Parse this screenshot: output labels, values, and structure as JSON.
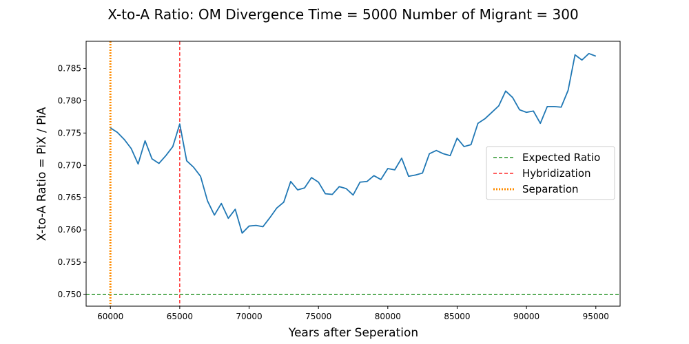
{
  "chart_data": {
    "type": "line",
    "title": "X-to-A Ratio: OM Divergence Time = 5000  Number of Migrant = 300",
    "xlabel": "Years after Seperation",
    "ylabel": "X-to-A Ratio = PiX / PiA",
    "xlim": [
      58250,
      96750
    ],
    "ylim": [
      0.7482,
      0.7892
    ],
    "xticks": [
      60000,
      65000,
      70000,
      75000,
      80000,
      85000,
      90000,
      95000
    ],
    "yticks": [
      0.75,
      0.755,
      0.76,
      0.765,
      0.77,
      0.775,
      0.78,
      0.785
    ],
    "xtick_labels": [
      "60000",
      "65000",
      "70000",
      "75000",
      "80000",
      "85000",
      "90000",
      "95000"
    ],
    "ytick_labels": [
      "0.750",
      "0.755",
      "0.760",
      "0.765",
      "0.770",
      "0.775",
      "0.780",
      "0.785"
    ],
    "grid": false,
    "legend_position": "center-right",
    "series": [
      {
        "color": "#1f77b4",
        "x": [
          60000,
          60500,
          61000,
          61500,
          62000,
          62500,
          63000,
          63500,
          64000,
          64500,
          65000,
          65500,
          66000,
          66500,
          67000,
          67500,
          68000,
          68500,
          69000,
          69500,
          70000,
          70500,
          71000,
          71500,
          72000,
          72500,
          73000,
          73500,
          74000,
          74500,
          75000,
          75500,
          76000,
          76500,
          77000,
          77500,
          78000,
          78500,
          79000,
          79500,
          80000,
          80500,
          81000,
          81500,
          82000,
          82500,
          83000,
          83500,
          84000,
          84500,
          85000,
          85500,
          86000,
          86500,
          87000,
          87500,
          88000,
          88500,
          89000,
          89500,
          90000,
          90500,
          91000,
          91500,
          92000,
          92500,
          93000,
          93500,
          94000,
          94500,
          95000
        ],
        "values": [
          0.7758,
          0.7751,
          0.774,
          0.7726,
          0.7702,
          0.7738,
          0.771,
          0.7703,
          0.7715,
          0.7729,
          0.7764,
          0.7707,
          0.7697,
          0.7683,
          0.7645,
          0.7623,
          0.7641,
          0.7618,
          0.7632,
          0.7595,
          0.7606,
          0.7607,
          0.7605,
          0.7619,
          0.7634,
          0.7643,
          0.7675,
          0.7662,
          0.7665,
          0.7681,
          0.7674,
          0.7656,
          0.7655,
          0.7667,
          0.7664,
          0.7654,
          0.7674,
          0.7675,
          0.7684,
          0.7678,
          0.7695,
          0.7693,
          0.7711,
          0.7683,
          0.7685,
          0.7688,
          0.7718,
          0.7723,
          0.7718,
          0.7715,
          0.7742,
          0.7729,
          0.7732,
          0.7765,
          0.7772,
          0.7782,
          0.7792,
          0.7815,
          0.7805,
          0.7786,
          0.7782,
          0.7784,
          0.7765,
          0.7791,
          0.7791,
          0.779,
          0.7816,
          0.7871,
          0.7863,
          0.7873,
          0.7869
        ]
      }
    ],
    "reference_lines": [
      {
        "orientation": "horizontal",
        "value": 0.75,
        "color": "#008000",
        "style": "dashed",
        "label": "Expected Ratio"
      },
      {
        "orientation": "vertical",
        "value": 65000,
        "color": "#ff0000",
        "style": "dashed",
        "label": "Hybridization"
      },
      {
        "orientation": "vertical",
        "value": 60000,
        "color": "#ff8c00",
        "style": "dotted",
        "label": "Separation"
      }
    ],
    "legend": [
      "Expected Ratio",
      "Hybridization",
      "Separation"
    ]
  }
}
